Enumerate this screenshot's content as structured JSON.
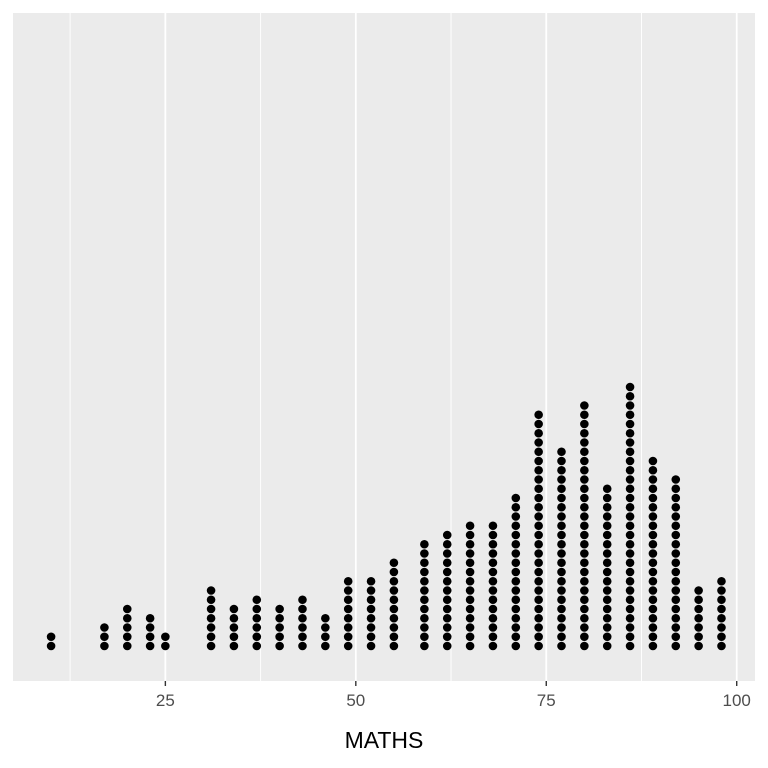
{
  "chart_data": {
    "type": "dotplot",
    "xlabel": "MATHS",
    "ylabel": "",
    "xlim": [
      5,
      102.4
    ],
    "x_ticks": [
      25,
      50,
      75,
      100
    ],
    "x_tick_labels": [
      "25",
      "50",
      "75",
      "100"
    ],
    "x_minor_ticks": [
      12.5,
      37.5,
      62.5,
      87.5
    ],
    "grid": true,
    "panel_color": "#ebebeb",
    "grid_color": "#ffffff",
    "dot_color": "#000000",
    "bins": [
      {
        "x": 10,
        "count": 2
      },
      {
        "x": 17,
        "count": 3
      },
      {
        "x": 20,
        "count": 5
      },
      {
        "x": 23,
        "count": 4
      },
      {
        "x": 25,
        "count": 2
      },
      {
        "x": 31,
        "count": 7
      },
      {
        "x": 34,
        "count": 5
      },
      {
        "x": 37,
        "count": 6
      },
      {
        "x": 40,
        "count": 5
      },
      {
        "x": 43,
        "count": 6
      },
      {
        "x": 46,
        "count": 4
      },
      {
        "x": 49,
        "count": 8
      },
      {
        "x": 52,
        "count": 8
      },
      {
        "x": 55,
        "count": 10
      },
      {
        "x": 59,
        "count": 12
      },
      {
        "x": 62,
        "count": 13
      },
      {
        "x": 65,
        "count": 14
      },
      {
        "x": 68,
        "count": 14
      },
      {
        "x": 71,
        "count": 17
      },
      {
        "x": 74,
        "count": 26
      },
      {
        "x": 77,
        "count": 22
      },
      {
        "x": 80,
        "count": 27
      },
      {
        "x": 83,
        "count": 18
      },
      {
        "x": 86,
        "count": 29
      },
      {
        "x": 89,
        "count": 21
      },
      {
        "x": 92,
        "count": 19
      },
      {
        "x": 95,
        "count": 7
      },
      {
        "x": 98,
        "count": 8
      }
    ]
  }
}
